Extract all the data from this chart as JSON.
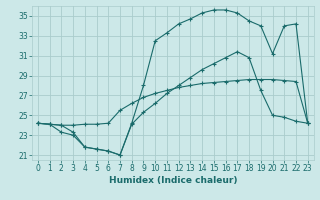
{
  "xlabel": "Humidex (Indice chaleur)",
  "bg_color": "#cce8e8",
  "grid_color": "#aacccc",
  "line_color": "#1a6b6b",
  "xlim": [
    -0.5,
    23.5
  ],
  "ylim": [
    20.5,
    36.0
  ],
  "xticks": [
    0,
    1,
    2,
    3,
    4,
    5,
    6,
    7,
    8,
    9,
    10,
    11,
    12,
    13,
    14,
    15,
    16,
    17,
    18,
    19,
    20,
    21,
    22,
    23
  ],
  "yticks": [
    21,
    23,
    25,
    27,
    29,
    31,
    33,
    35
  ],
  "curve1_x": [
    0,
    1,
    2,
    3,
    4,
    5,
    6,
    7,
    8,
    9,
    10,
    11,
    12,
    13,
    14,
    15,
    16,
    17,
    18,
    19,
    20,
    21,
    22,
    23
  ],
  "curve1_y": [
    24.2,
    24.1,
    24.0,
    24.0,
    24.1,
    24.1,
    24.2,
    25.5,
    26.2,
    26.8,
    27.2,
    27.5,
    27.8,
    28.0,
    28.2,
    28.3,
    28.4,
    28.5,
    28.6,
    28.6,
    28.6,
    28.5,
    28.4,
    24.2
  ],
  "curve2_x": [
    0,
    1,
    2,
    3,
    4,
    5,
    6,
    7,
    8,
    9,
    10,
    11,
    12,
    13,
    14,
    15,
    16,
    17,
    18,
    19,
    20,
    21,
    22,
    23
  ],
  "curve2_y": [
    24.2,
    24.1,
    23.3,
    23.0,
    21.8,
    21.6,
    21.4,
    21.0,
    24.1,
    25.3,
    26.2,
    27.2,
    28.0,
    28.8,
    29.6,
    30.2,
    30.8,
    31.4,
    30.8,
    27.5,
    25.0,
    24.8,
    24.4,
    24.2
  ],
  "curve3_x": [
    0,
    1,
    2,
    3,
    4,
    5,
    6,
    7,
    8,
    9,
    10,
    11,
    12,
    13,
    14,
    15,
    16,
    17,
    18,
    19,
    20,
    21,
    22,
    23
  ],
  "curve3_y": [
    24.2,
    24.1,
    24.0,
    23.3,
    21.8,
    21.6,
    21.4,
    21.0,
    24.2,
    28.0,
    32.5,
    33.3,
    34.2,
    34.7,
    35.3,
    35.6,
    35.6,
    35.3,
    34.5,
    34.0,
    31.2,
    34.0,
    34.2,
    24.2
  ]
}
